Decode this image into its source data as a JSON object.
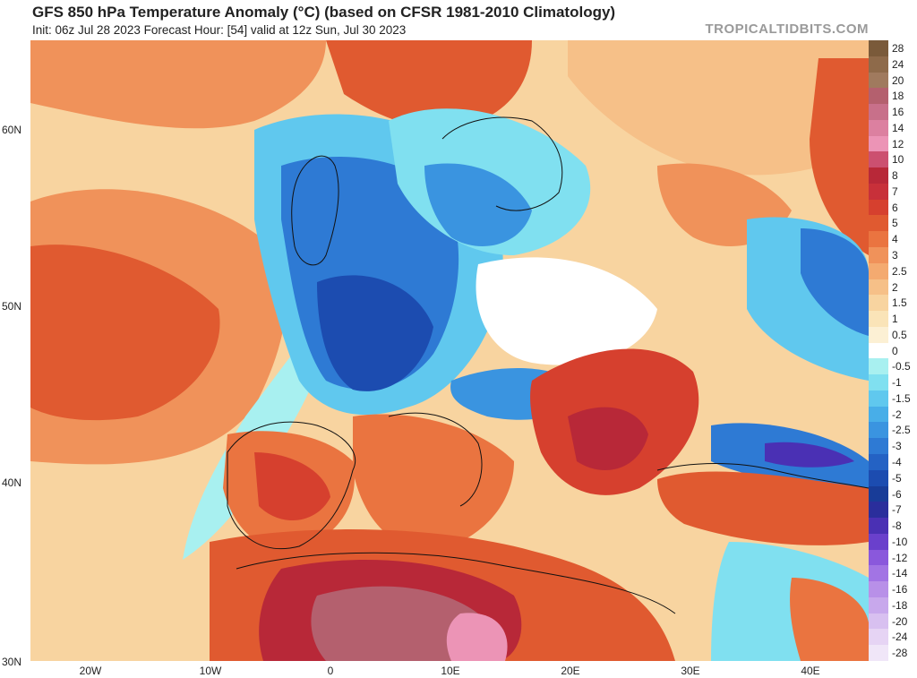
{
  "header": {
    "title": "GFS 850 hPa Temperature Anomaly (°C) (based on CFSR 1981-2010 Climatology)",
    "subtitle": "Init: 06z Jul 28 2023   Forecast Hour: [54]   valid at 12z Sun, Jul 30 2023",
    "brand": "TROPICALTIDBITS.COM"
  },
  "axes": {
    "lat_labels": [
      "60N",
      "50N",
      "40N",
      "30N"
    ],
    "lon_labels": [
      "20W",
      "10W",
      "0",
      "10E",
      "20E",
      "30E",
      "40E"
    ]
  },
  "legend": {
    "items": [
      {
        "label": "28",
        "color": "#7a5a3a"
      },
      {
        "label": "24",
        "color": "#8e6a4a"
      },
      {
        "label": "20",
        "color": "#a07a5e"
      },
      {
        "label": "18",
        "color": "#b4606e"
      },
      {
        "label": "16",
        "color": "#c8708a"
      },
      {
        "label": "14",
        "color": "#dc80a0"
      },
      {
        "label": "12",
        "color": "#ec94b6"
      },
      {
        "label": "10",
        "color": "#cc5070"
      },
      {
        "label": "8",
        "color": "#b82838"
      },
      {
        "label": "7",
        "color": "#c8303a"
      },
      {
        "label": "6",
        "color": "#d6402e"
      },
      {
        "label": "5",
        "color": "#e05a30"
      },
      {
        "label": "4",
        "color": "#ea7440"
      },
      {
        "label": "3",
        "color": "#f0925a"
      },
      {
        "label": "2.5",
        "color": "#f4aa70"
      },
      {
        "label": "2",
        "color": "#f6c088"
      },
      {
        "label": "1.5",
        "color": "#f8d4a0"
      },
      {
        "label": "1",
        "color": "#fae4b8"
      },
      {
        "label": "0.5",
        "color": "#fcf0d4"
      },
      {
        "label": "0",
        "color": "#ffffff"
      },
      {
        "label": "-0.5",
        "color": "#a8f0f0"
      },
      {
        "label": "-1",
        "color": "#80e0f0"
      },
      {
        "label": "-1.5",
        "color": "#60c8ee"
      },
      {
        "label": "-2",
        "color": "#48aee8"
      },
      {
        "label": "-2.5",
        "color": "#3a94e0"
      },
      {
        "label": "-3",
        "color": "#2e7ad4"
      },
      {
        "label": "-4",
        "color": "#2462c4"
      },
      {
        "label": "-5",
        "color": "#1c4cb0"
      },
      {
        "label": "-6",
        "color": "#183c98"
      },
      {
        "label": "-7",
        "color": "#2a2e9c"
      },
      {
        "label": "-8",
        "color": "#4a30b4"
      },
      {
        "label": "-10",
        "color": "#6a40cc"
      },
      {
        "label": "-12",
        "color": "#8a58dc"
      },
      {
        "label": "-14",
        "color": "#a274e4"
      },
      {
        "label": "-16",
        "color": "#b890e8"
      },
      {
        "label": "-18",
        "color": "#c8a8ec"
      },
      {
        "label": "-20",
        "color": "#d8c0f0"
      },
      {
        "label": "-24",
        "color": "#e6d4f4"
      },
      {
        "label": "-28",
        "color": "#f0e6f8"
      }
    ]
  }
}
